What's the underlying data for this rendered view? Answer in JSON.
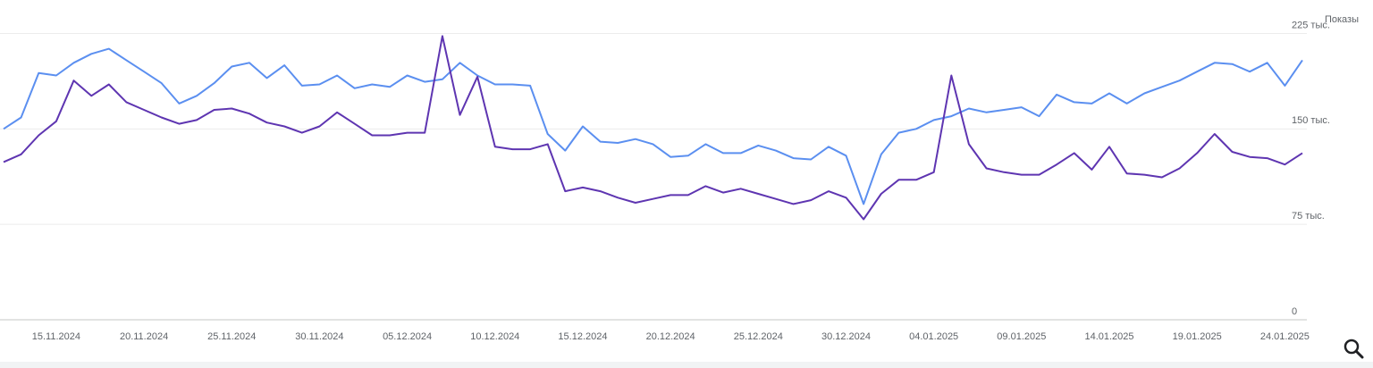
{
  "chart_data": {
    "type": "line",
    "ylabel": "Показы",
    "x": [
      "12.11.2024",
      "13.11.2024",
      "14.11.2024",
      "15.11.2024",
      "16.11.2024",
      "17.11.2024",
      "18.11.2024",
      "19.11.2024",
      "20.11.2024",
      "21.11.2024",
      "22.11.2024",
      "23.11.2024",
      "24.11.2024",
      "25.11.2024",
      "26.11.2024",
      "27.11.2024",
      "28.11.2024",
      "29.11.2024",
      "30.11.2024",
      "01.12.2024",
      "02.12.2024",
      "03.12.2024",
      "04.12.2024",
      "05.12.2024",
      "06.12.2024",
      "07.12.2024",
      "08.12.2024",
      "09.12.2024",
      "10.12.2024",
      "11.12.2024",
      "12.12.2024",
      "13.12.2024",
      "14.12.2024",
      "15.12.2024",
      "16.12.2024",
      "17.12.2024",
      "18.12.2024",
      "19.12.2024",
      "20.12.2024",
      "21.12.2024",
      "22.12.2024",
      "23.12.2024",
      "24.12.2024",
      "25.12.2024",
      "26.12.2024",
      "27.12.2024",
      "28.12.2024",
      "29.12.2024",
      "30.12.2024",
      "31.12.2024",
      "01.01.2025",
      "02.01.2025",
      "03.01.2025",
      "04.01.2025",
      "05.01.2025",
      "06.01.2025",
      "07.01.2025",
      "08.01.2025",
      "09.01.2025",
      "10.01.2025",
      "11.01.2025",
      "12.01.2025",
      "13.01.2025",
      "14.01.2025",
      "15.01.2025",
      "16.01.2025",
      "17.01.2025",
      "18.01.2025",
      "19.01.2025",
      "20.01.2025",
      "21.01.2025",
      "22.01.2025",
      "23.01.2025",
      "24.01.2025",
      "25.01.2025"
    ],
    "series": [
      {
        "color": "#5b8ff0",
        "values": [
          150,
          159,
          194,
          192,
          202,
          209,
          213,
          204,
          195,
          186,
          170,
          176,
          186,
          199,
          202,
          190,
          200,
          184,
          185,
          192,
          182,
          185,
          183,
          192,
          187,
          189,
          202,
          192,
          185,
          185,
          184,
          146,
          133,
          152,
          140,
          139,
          142,
          138,
          128,
          129,
          138,
          131,
          131,
          137,
          133,
          127,
          126,
          136,
          129,
          91,
          130,
          147,
          150,
          157,
          160,
          166,
          163,
          165,
          167,
          160,
          177,
          171,
          170,
          178,
          170,
          178,
          183,
          188,
          195,
          202,
          201,
          195,
          202,
          184,
          204
        ]
      },
      {
        "color": "#5e35b1",
        "values": [
          124,
          130,
          145,
          156,
          188,
          176,
          185,
          171,
          165,
          159,
          154,
          157,
          165,
          166,
          162,
          155,
          152,
          147,
          152,
          163,
          154,
          145,
          145,
          147,
          147,
          223,
          161,
          191,
          136,
          134,
          134,
          138,
          101,
          104,
          101,
          96,
          92,
          95,
          98,
          98,
          105,
          100,
          103,
          99,
          95,
          91,
          94,
          101,
          96,
          79,
          99,
          110,
          110,
          116,
          192,
          138,
          119,
          116,
          114,
          114,
          122,
          131,
          118,
          136,
          115,
          114,
          112,
          119,
          131,
          146,
          132,
          128,
          127,
          122,
          131
        ]
      }
    ],
    "ylim": [
      0,
      240
    ],
    "yticks": [
      0,
      {
        "value": 75,
        "label": "75 тыс."
      },
      {
        "value": 150,
        "label": "150 тыс."
      },
      {
        "value": 225,
        "label": "225 тыс."
      }
    ],
    "xticks": [
      "15.11.2024",
      "20.11.2024",
      "25.11.2024",
      "30.11.2024",
      "05.12.2024",
      "10.12.2024",
      "15.12.2024",
      "20.12.2024",
      "25.12.2024",
      "30.12.2024",
      "04.01.2025",
      "09.01.2025",
      "14.01.2025",
      "19.01.2025",
      "24.01.2025"
    ],
    "grid": true
  }
}
